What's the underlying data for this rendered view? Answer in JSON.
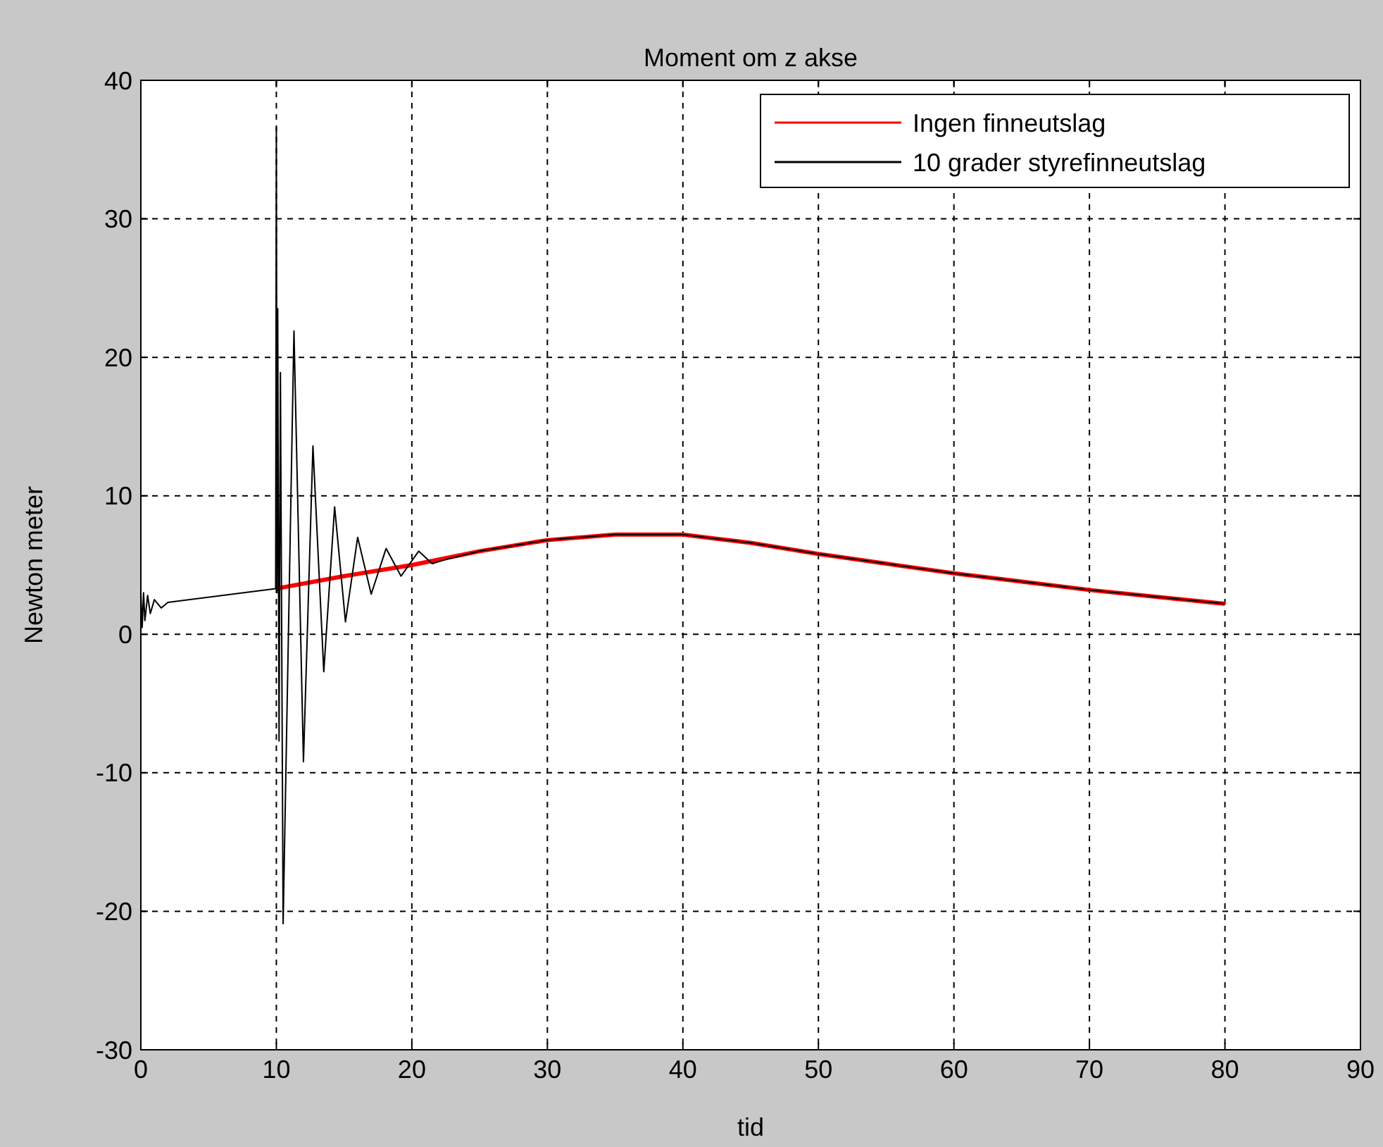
{
  "chart_data": {
    "type": "line",
    "title": "Moment om z akse",
    "xlabel": "tid",
    "ylabel": "Newton meter",
    "xlim": [
      0,
      90
    ],
    "xticks": [
      0,
      10,
      20,
      30,
      40,
      50,
      60,
      70,
      80,
      90
    ],
    "ylim": [
      -30,
      40
    ],
    "yticks": [
      -30,
      -20,
      -10,
      0,
      10,
      20,
      30,
      40
    ],
    "grid": true,
    "legend": "top right",
    "series": [
      {
        "name": "Ingen finneutslag",
        "color": "#ff0000",
        "x": [
          10,
          15,
          20,
          25,
          30,
          35,
          40,
          45,
          50,
          55,
          60,
          65,
          70,
          75,
          80
        ],
        "values": [
          3.3,
          4.2,
          5.0,
          6.0,
          6.8,
          7.2,
          7.2,
          6.6,
          5.8,
          5.1,
          4.4,
          3.8,
          3.2,
          2.7,
          2.2
        ]
      },
      {
        "name": "10 grader styrefinneutslag",
        "color": "#000000",
        "x": [
          0,
          0.1,
          0.2,
          0.3,
          0.5,
          0.7,
          1,
          1.5,
          2,
          9.95,
          10,
          10.05,
          10.1,
          10.2,
          10.3,
          10.5,
          11.3,
          12,
          12.7,
          13.5,
          14.3,
          15.1,
          16,
          17,
          18.1,
          19.2,
          20.5,
          21.5,
          22.5,
          25,
          30,
          35,
          40,
          45,
          50,
          55,
          60,
          65,
          70,
          75,
          80
        ],
        "values": [
          3,
          0.5,
          3,
          1,
          2.8,
          1.5,
          2.5,
          1.9,
          2.3,
          3.3,
          36.6,
          3,
          23.5,
          -7.7,
          18.9,
          -20.9,
          21.9,
          -9.2,
          13.6,
          -2.7,
          9.2,
          0.9,
          7.0,
          2.9,
          6.2,
          4.2,
          6.0,
          5.1,
          5.4,
          6.0,
          6.8,
          7.2,
          7.2,
          6.6,
          5.8,
          5.1,
          4.4,
          3.8,
          3.2,
          2.7,
          2.2
        ]
      }
    ]
  }
}
